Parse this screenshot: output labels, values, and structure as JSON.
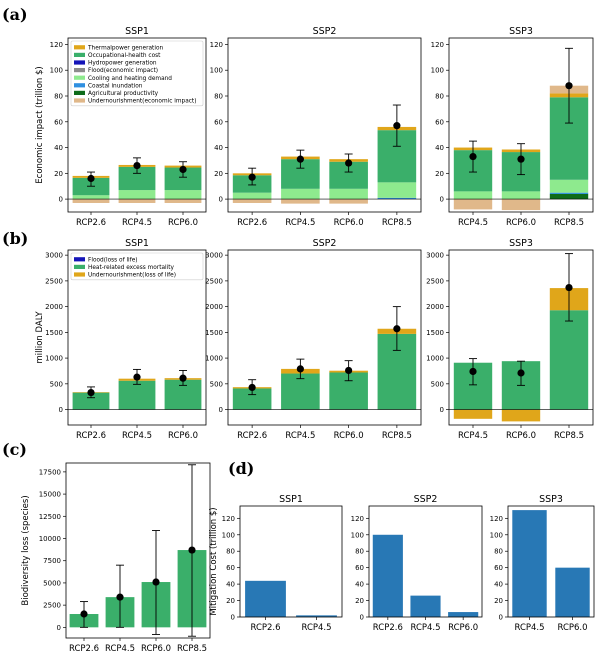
{
  "panel_labels": [
    "(a)",
    "(b)",
    "(c)",
    "(d)"
  ],
  "chart_data": [
    {
      "id": "a",
      "type": "bar",
      "stacked": true,
      "ylabel": "Economic impact (trillion $)",
      "ylim": [
        -10,
        125
      ],
      "yticks": [
        0,
        20,
        40,
        60,
        80,
        100,
        120
      ],
      "legend": {
        "placement": "top-left",
        "entries": [
          {
            "label": "Thermalpower generation",
            "color": "#e0a61a"
          },
          {
            "label": "Occupational-health cost",
            "color": "#3aaf6a"
          },
          {
            "label": "Hydropower generation",
            "color": "#1414b8"
          },
          {
            "label": "Flood(economic impact)",
            "color": "#8c8c8c"
          },
          {
            "label": "Cooling and heating demand",
            "color": "#8eea8e"
          },
          {
            "label": "Coastal inundation",
            "color": "#2f8fe0"
          },
          {
            "label": "Agricultural productivity",
            "color": "#0e6b1a"
          },
          {
            "label": "Undernourishment(economic impact)",
            "color": "#e0b88a"
          }
        ]
      },
      "subplots": [
        {
          "title": "SSP1",
          "categories": [
            "RCP2.6",
            "RCP4.5",
            "RCP6.0"
          ],
          "series": [
            {
              "name": "Cooling and heating demand",
              "color": "#8eea8e",
              "values": [
                3,
                7,
                7
              ]
            },
            {
              "name": "Occupational-health cost",
              "color": "#3aaf6a",
              "values": [
                13.5,
                18,
                17.5
              ]
            },
            {
              "name": "Thermalpower generation",
              "color": "#e0a61a",
              "values": [
                1.5,
                1.5,
                1.5
              ]
            },
            {
              "name": "Undernourishment(economic impact)",
              "color": "#e0b88a",
              "values": [
                -3,
                -3,
                -3
              ]
            }
          ],
          "mean": [
            16,
            26,
            23
          ],
          "err_low": [
            10,
            20,
            17
          ],
          "err_high": [
            21,
            32,
            29
          ]
        },
        {
          "title": "SSP2",
          "categories": [
            "RCP2.6",
            "RCP4.5",
            "RCP6.0",
            "RCP8.5"
          ],
          "series": [
            {
              "name": "Coastal inundation",
              "color": "#2f8fe0",
              "values": [
                0,
                0,
                0,
                1
              ]
            },
            {
              "name": "Cooling and heating demand",
              "color": "#8eea8e",
              "values": [
                5,
                8,
                8,
                12
              ]
            },
            {
              "name": "Occupational-health cost",
              "color": "#3aaf6a",
              "values": [
                13.5,
                23,
                21,
                40.5
              ]
            },
            {
              "name": "Thermalpower generation",
              "color": "#e0a61a",
              "values": [
                1.5,
                2,
                2,
                2.5
              ]
            },
            {
              "name": "Undernourishment(economic impact)",
              "color": "#e0b88a",
              "values": [
                -3,
                -3.5,
                -3.5,
                0
              ]
            }
          ],
          "mean": [
            17,
            31,
            28,
            57
          ],
          "err_low": [
            11,
            24,
            21,
            41
          ],
          "err_high": [
            24,
            38,
            35,
            73
          ]
        },
        {
          "title": "SSP3",
          "categories": [
            "RCP4.5",
            "RCP6.0",
            "RCP8.5"
          ],
          "series": [
            {
              "name": "Agricultural productivity",
              "color": "#0e6b1a",
              "values": [
                0,
                0,
                4
              ]
            },
            {
              "name": "Coastal inundation",
              "color": "#2f8fe0",
              "values": [
                0,
                0,
                1
              ]
            },
            {
              "name": "Cooling and heating demand",
              "color": "#8eea8e",
              "values": [
                6,
                6,
                10
              ]
            },
            {
              "name": "Occupational-health cost",
              "color": "#3aaf6a",
              "values": [
                32,
                30.5,
                64
              ]
            },
            {
              "name": "Thermalpower generation",
              "color": "#e0a61a",
              "values": [
                2,
                2,
                3
              ]
            },
            {
              "name": "Undernourishment(economic impact)",
              "color": "#e0b88a",
              "values": [
                -8,
                -8.5,
                6
              ]
            }
          ],
          "mean": [
            33,
            31,
            88
          ],
          "err_low": [
            21,
            19,
            59
          ],
          "err_high": [
            45,
            43,
            117
          ]
        }
      ]
    },
    {
      "id": "b",
      "type": "bar",
      "stacked": true,
      "ylabel": "million DALY",
      "ylim": [
        -300,
        3100
      ],
      "yticks": [
        0,
        500,
        1000,
        1500,
        2000,
        2500,
        3000
      ],
      "legend": {
        "placement": "top-left",
        "entries": [
          {
            "label": "Flood(loss of life)",
            "color": "#1414b8"
          },
          {
            "label": "Heat-related excess mortality",
            "color": "#3aaf6a"
          },
          {
            "label": "Undernourishment(loss of life)",
            "color": "#e0a61a"
          }
        ]
      },
      "subplots": [
        {
          "title": "SSP1",
          "categories": [
            "RCP2.6",
            "RCP4.5",
            "RCP6.0"
          ],
          "series": [
            {
              "name": "Heat-related excess mortality",
              "color": "#3aaf6a",
              "values": [
                330,
                560,
                580
              ]
            },
            {
              "name": "Undernourishment(loss of life)",
              "color": "#e0a61a",
              "values": [
                8,
                40,
                30
              ]
            }
          ],
          "mean": [
            330,
            630,
            610
          ],
          "err_low": [
            230,
            490,
            470
          ],
          "err_high": [
            440,
            780,
            760
          ]
        },
        {
          "title": "SSP2",
          "categories": [
            "RCP2.6",
            "RCP4.5",
            "RCP6.0",
            "RCP8.5"
          ],
          "series": [
            {
              "name": "Heat-related excess mortality",
              "color": "#3aaf6a",
              "values": [
                410,
                700,
                720,
                1470
              ]
            },
            {
              "name": "Undernourishment(loss of life)",
              "color": "#e0a61a",
              "values": [
                25,
                90,
                35,
                100
              ]
            }
          ],
          "mean": [
            430,
            790,
            760,
            1570
          ],
          "err_low": [
            290,
            600,
            560,
            1150
          ],
          "err_high": [
            580,
            980,
            950,
            2000
          ]
        },
        {
          "title": "SSP3",
          "categories": [
            "RCP4.5",
            "RCP6.0",
            "RCP8.5"
          ],
          "series": [
            {
              "name": "Heat-related excess mortality",
              "color": "#3aaf6a",
              "values": [
                910,
                940,
                1930
              ]
            },
            {
              "name": "Undernourishment(loss of life)",
              "color": "#e0a61a",
              "values": [
                -180,
                -230,
                430
              ]
            }
          ],
          "mean": [
            740,
            710,
            2370
          ],
          "err_low": [
            480,
            470,
            1720
          ],
          "err_high": [
            990,
            940,
            3030
          ]
        }
      ]
    },
    {
      "id": "c",
      "type": "bar",
      "ylabel": "Biodiversity loss (species)",
      "ylim": [
        -1200,
        18500
      ],
      "yticks": [
        0,
        2500,
        5000,
        7500,
        10000,
        12500,
        15000,
        17500
      ],
      "categories": [
        "RCP2.6",
        "RCP4.5",
        "RCP6.0",
        "RCP8.5"
      ],
      "values": [
        1500,
        3400,
        5100,
        8700
      ],
      "color": "#3aaf6a",
      "err_low": [
        0,
        0,
        -800,
        -1000
      ],
      "err_high": [
        2900,
        7000,
        10900,
        18300
      ]
    },
    {
      "id": "d",
      "type": "bar",
      "ylabel": "Mitigation Cost (trillion $)",
      "ylim": [
        0,
        135
      ],
      "yticks": [
        0,
        20,
        40,
        60,
        80,
        100,
        120
      ],
      "color": "#2878b5",
      "subplots": [
        {
          "title": "SSP1",
          "categories": [
            "RCP2.6",
            "RCP4.5"
          ],
          "values": [
            44,
            2
          ]
        },
        {
          "title": "SSP2",
          "categories": [
            "RCP2.6",
            "RCP4.5",
            "RCP6.0"
          ],
          "values": [
            100,
            26,
            6
          ]
        },
        {
          "title": "SSP3",
          "categories": [
            "RCP4.5",
            "RCP6.0"
          ],
          "values": [
            130,
            60
          ]
        }
      ]
    }
  ]
}
